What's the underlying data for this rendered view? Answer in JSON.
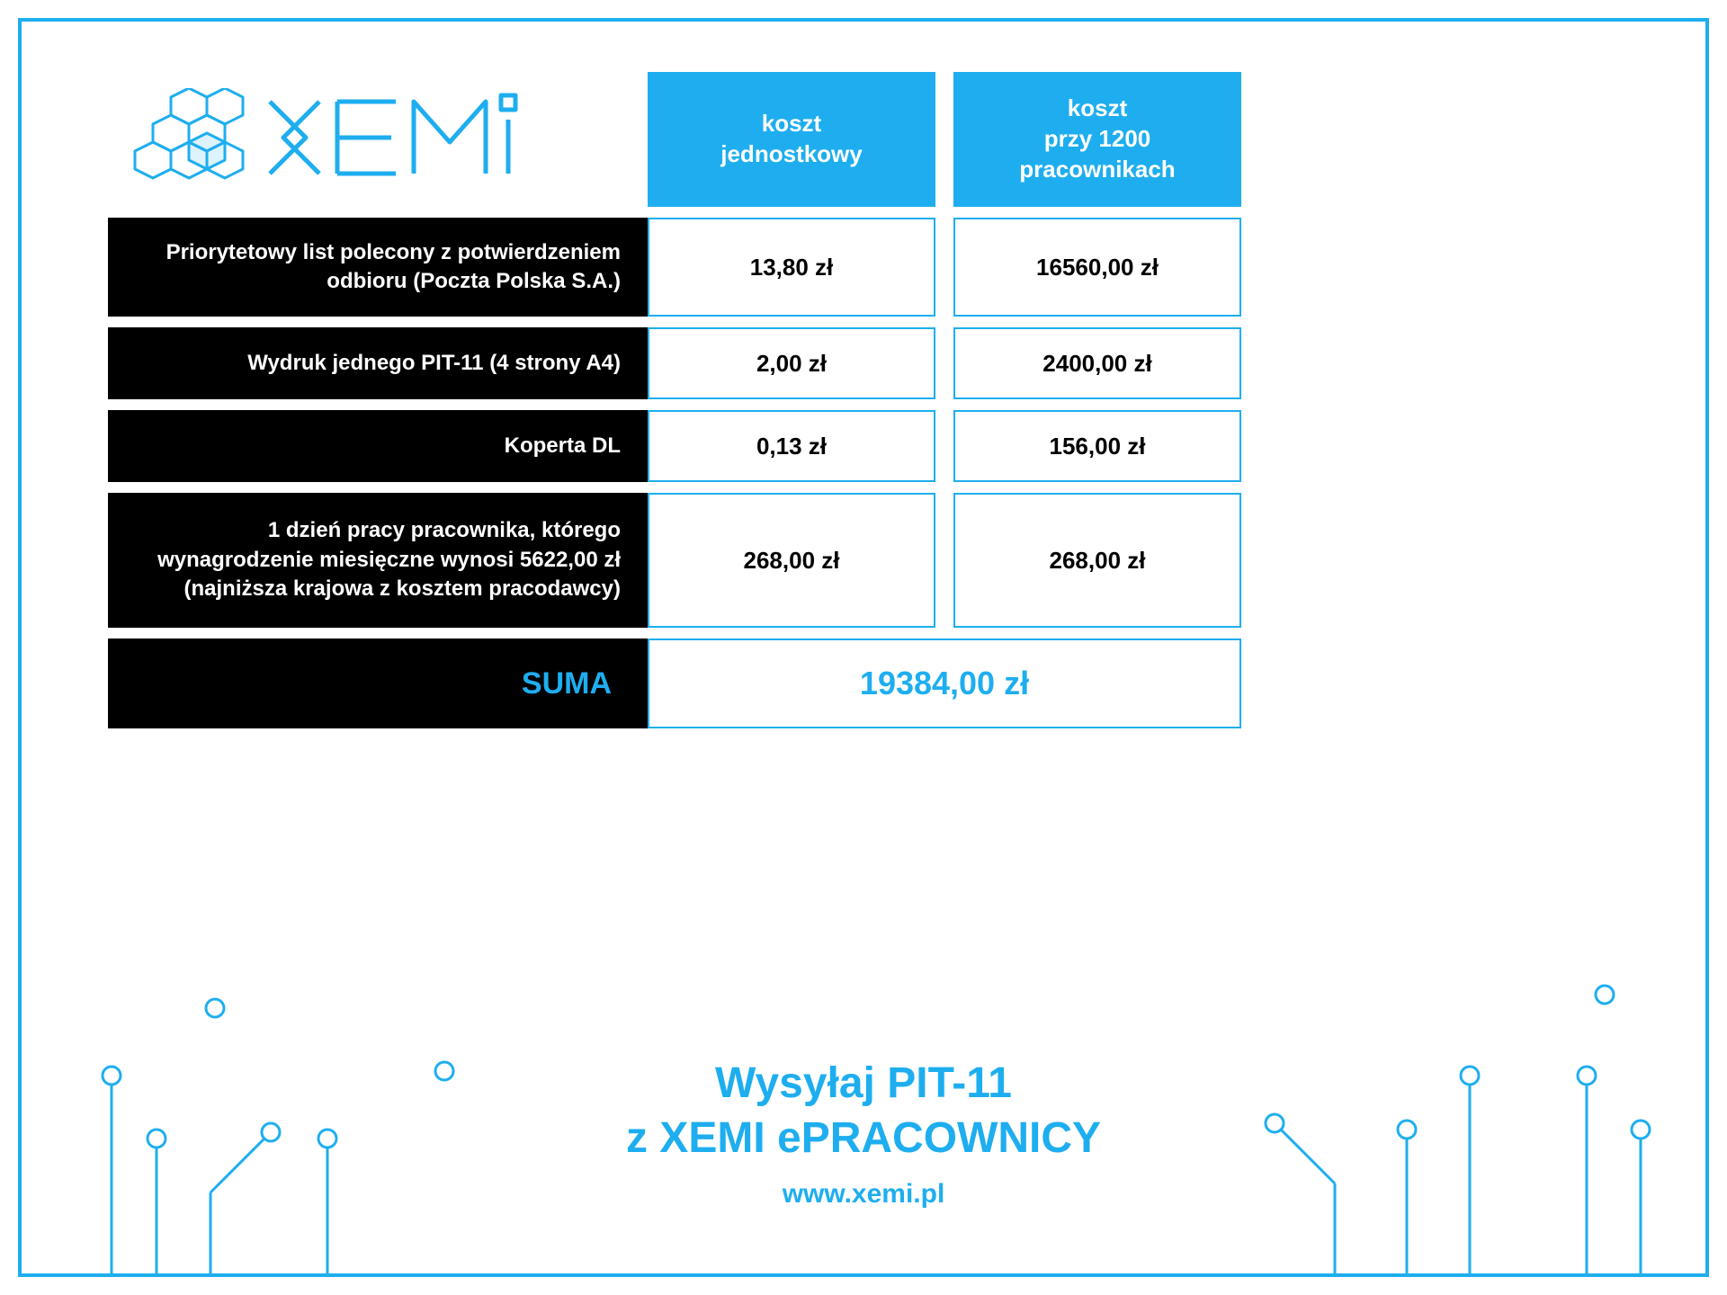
{
  "brand": {
    "name": "XEMI"
  },
  "colors": {
    "accent": "#1eaeef",
    "black": "#000000",
    "white": "#ffffff"
  },
  "table": {
    "headers": {
      "col1": "koszt\njednostkowy",
      "col2": "koszt\nprzy 1200\npracownikach"
    },
    "rows": [
      {
        "label": "Priorytetowy list polecony z potwierdzeniem odbioru (Poczta Polska S.A.)",
        "unit": "13,80 zł",
        "total": "16560,00 zł",
        "h": "row-h1"
      },
      {
        "label": "Wydruk jednego PIT-11 (4 strony A4)",
        "unit": "2,00 zł",
        "total": "2400,00 zł",
        "h": "row-h2"
      },
      {
        "label": "Koperta DL",
        "unit": "0,13 zł",
        "total": "156,00 zł",
        "h": "row-h2"
      },
      {
        "label": "1 dzień pracy pracownika, którego wynagrodzenie miesięczne wynosi 5622,00 zł (najniższa krajowa z kosztem pracodawcy)",
        "unit": "268,00 zł",
        "total": "268,00 zł",
        "h": "row-h3"
      }
    ],
    "sum": {
      "label": "SUMA",
      "value": "19384,00 zł"
    }
  },
  "footer": {
    "line1": "Wysyłaj PIT-11",
    "line2": "z XEMI ePRACOWNICY",
    "url": "www.xemi.pl"
  }
}
